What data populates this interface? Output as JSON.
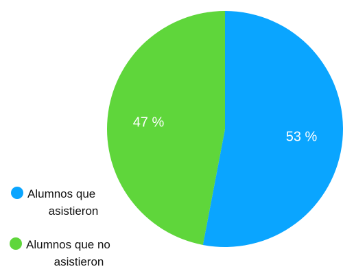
{
  "chart_data": {
    "type": "pie",
    "title": "",
    "categories": [
      "Alumnos que asistieron",
      "Alumnos que no asistieron"
    ],
    "values": [
      53,
      47
    ],
    "value_labels": [
      "53 %",
      "47 %"
    ],
    "colors": [
      "#0aa5ff",
      "#5fd63b"
    ],
    "legend": {
      "placement": "bottom-left",
      "entries": [
        {
          "line1": "Alumnos que",
          "line2": "asistieron"
        },
        {
          "line1": "Alumnos que no",
          "line2": "asistieron"
        }
      ]
    },
    "start_angle": "12 o'clock",
    "direction": "clockwise"
  }
}
